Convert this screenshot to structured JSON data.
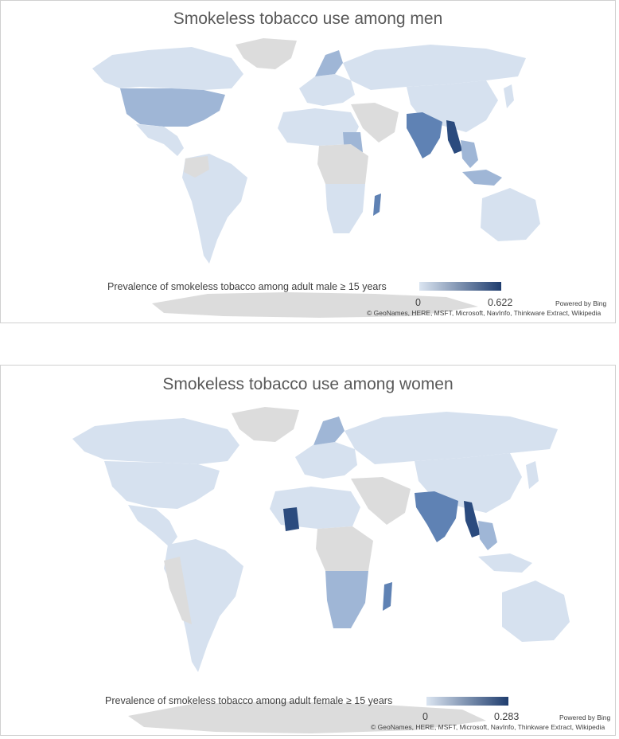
{
  "maps": [
    {
      "title": "Smokeless tobacco use among men",
      "legend": {
        "label": "Prevalence of smokeless tobacco among adult male ≥ 15 years",
        "min": "0",
        "max": "0.622",
        "color_min": "#dbe5f1",
        "color_max": "#1f3d6e"
      },
      "attribution": {
        "powered": "Powered by Bing",
        "credits": "© GeoNames, HERE, MSFT, Microsoft, NavInfo, Thinkware Extract, Wikipedia"
      }
    },
    {
      "title": "Smokeless tobacco use among women",
      "legend": {
        "label": "Prevalence of smokeless tobacco among adult female ≥ 15 years",
        "min": "0",
        "max": "0.283",
        "color_min": "#dbe5f1",
        "color_max": "#1f3d6e"
      },
      "attribution": {
        "powered": "Powered by Bing",
        "credits": "© GeoNames, HERE, MSFT, Microsoft, NavInfo, Thinkware Extract, Wikipedia"
      }
    }
  ],
  "colors": {
    "no_data": "#dcdcdc",
    "low": "#d6e1ef",
    "mid": "#9fb6d6",
    "high": "#5f82b4",
    "max": "#2b4b7e"
  }
}
